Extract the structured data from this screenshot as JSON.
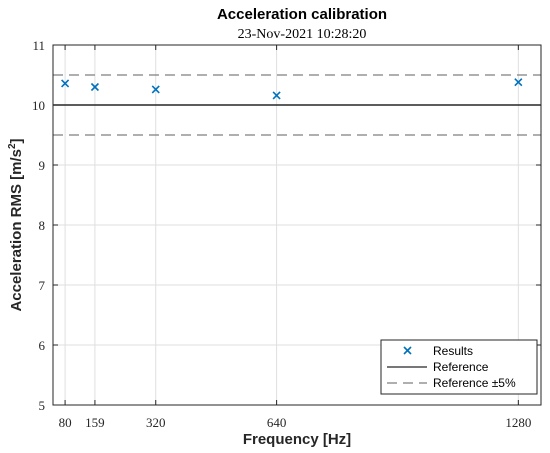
{
  "chart_data": {
    "type": "scatter",
    "title": "Acceleration calibration",
    "subtitle": "23-Nov-2021 10:28:20",
    "xlabel": "Frequency [Hz]",
    "ylabel_main": "Acceleration RMS [m/s",
    "ylabel_sup": "2",
    "ylabel_end": "]",
    "xlim": [
      48,
      1340
    ],
    "ylim": [
      5,
      11
    ],
    "xticks": [
      80,
      159,
      320,
      640,
      1280
    ],
    "xtick_labels": [
      "80",
      "159",
      "320",
      "640",
      "1280"
    ],
    "yticks": [
      5,
      6,
      7,
      8,
      9,
      10,
      11
    ],
    "ytick_labels": [
      "5",
      "6",
      "7",
      "8",
      "9",
      "10",
      "11"
    ],
    "grid": true,
    "legend_position": "bottom-right",
    "series": [
      {
        "name": "Results",
        "kind": "marker",
        "color": "#0072BD",
        "x": [
          80,
          159,
          320,
          640,
          1280
        ],
        "y": [
          10.36,
          10.3,
          10.26,
          10.16,
          10.38
        ]
      },
      {
        "name": "Reference",
        "kind": "hline",
        "color": "#262626",
        "y": 10
      },
      {
        "name": "Reference ±5%",
        "kind": "hline-dashed",
        "color": "#7f7f7f",
        "y": [
          9.5,
          10.5
        ]
      }
    ]
  }
}
